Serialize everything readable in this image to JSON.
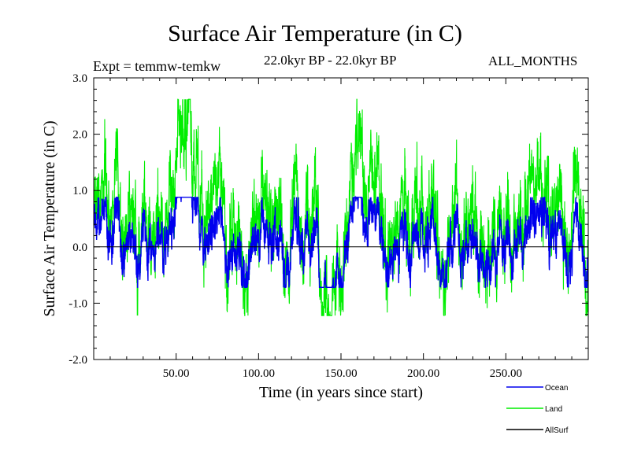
{
  "chart_data": {
    "type": "line",
    "title": "Surface Air Temperature (in C)",
    "subtitle_left": "Expt = temmw-temkw",
    "subtitle_center": "22.0kyr BP - 22.0kyr BP",
    "subtitle_right": "ALL_MONTHS",
    "xlabel": "Time (in years since start)",
    "ylabel": "Surface Air Temperature (in C)",
    "xlim": [
      0,
      300
    ],
    "ylim": [
      -2.0,
      3.0
    ],
    "x_tick_labels": [
      "50.00",
      "100.00",
      "150.00",
      "200.00",
      "250.00"
    ],
    "x_tick_values": [
      50,
      100,
      150,
      200,
      250
    ],
    "y_tick_labels": [
      "3.0",
      "2.0",
      "1.0",
      "0.0",
      "-1.0",
      "-2.0"
    ],
    "y_tick_values": [
      3,
      2,
      1,
      0,
      -1,
      -2
    ],
    "zero_line": 0.0,
    "legend_position": "bottom-right",
    "series": [
      {
        "name": "Land",
        "color": "#00ee00",
        "mean": 0.62,
        "amplitude": 0.55,
        "min": -1.22,
        "max": 2.62
      },
      {
        "name": "Ocean",
        "color": "#0000ee",
        "mean": 0.2,
        "amplitude": 0.25,
        "min": -0.72,
        "max": 0.88
      },
      {
        "name": "AllSurf",
        "color": "#000000"
      }
    ],
    "legend_entries": [
      "Ocean",
      "Land",
      "AllSurf"
    ],
    "samples_per_year": 12
  }
}
